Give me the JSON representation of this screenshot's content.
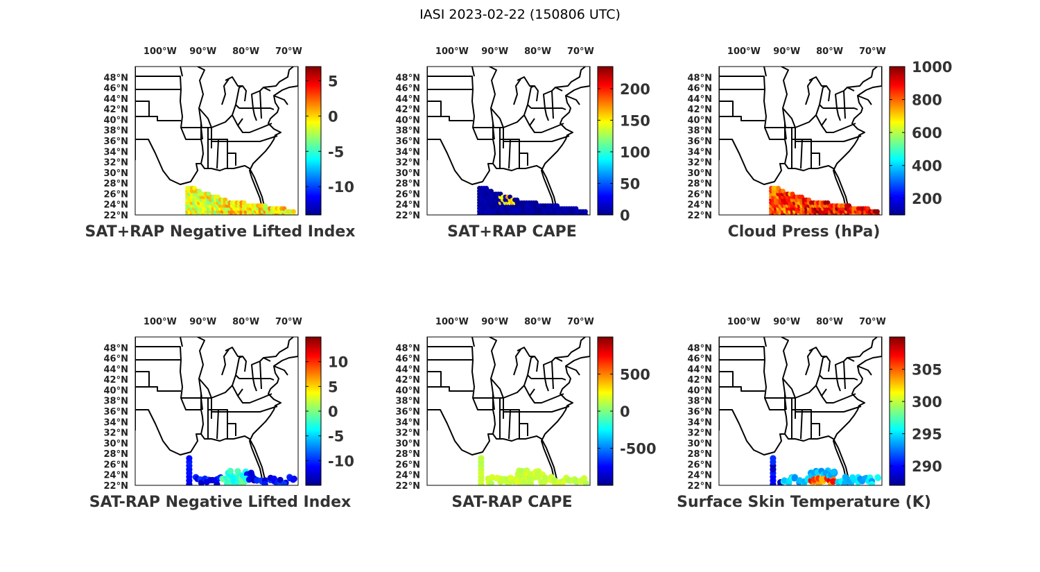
{
  "figure": {
    "title": "IASI 2023-02-22 (150806 UTC)"
  },
  "lon_labels": [
    "100°W",
    "90°W",
    "80°W",
    "70°W"
  ],
  "lat_labels": [
    "48°N",
    "46°N",
    "44°N",
    "42°N",
    "40°N",
    "38°N",
    "36°N",
    "34°N",
    "32°N",
    "30°N",
    "28°N",
    "26°N",
    "24°N",
    "22°N"
  ],
  "map_extent": {
    "lon": [
      -105,
      -67
    ],
    "lat": [
      22,
      50
    ]
  },
  "colormap": "jet",
  "panels": [
    {
      "title": "SAT+RAP Negative Lifted Index",
      "colorbar": {
        "range": [
          -14,
          7
        ],
        "ticks": [
          "-10",
          "-5",
          "0",
          "5"
        ],
        "tick_values": [
          -10,
          -5,
          0,
          5
        ]
      },
      "data_mode": "li_sum"
    },
    {
      "title": "SAT+RAP CAPE",
      "colorbar": {
        "range": [
          0,
          235
        ],
        "ticks": [
          "0",
          "50",
          "100",
          "150",
          "200"
        ],
        "tick_values": [
          0,
          50,
          100,
          150,
          200
        ]
      },
      "data_mode": "cape_sum"
    },
    {
      "title": "Cloud Press (hPa)",
      "colorbar": {
        "range": [
          100,
          1000
        ],
        "ticks": [
          "200",
          "400",
          "600",
          "800",
          "1000"
        ],
        "tick_values": [
          200,
          400,
          600,
          800,
          1000
        ]
      },
      "data_mode": "cloud_press"
    },
    {
      "title": "SAT-RAP Negative Lifted Index",
      "colorbar": {
        "range": [
          -15,
          15
        ],
        "ticks": [
          "-10",
          "-5",
          "0",
          "5",
          "10"
        ],
        "tick_values": [
          -10,
          -5,
          0,
          5,
          10
        ]
      },
      "data_mode": "li_diff"
    },
    {
      "title": "SAT-RAP CAPE",
      "colorbar": {
        "range": [
          -1000,
          1000
        ],
        "ticks": [
          "-500",
          "0",
          "500"
        ],
        "tick_values": [
          -500,
          0,
          500
        ]
      },
      "data_mode": "cape_diff"
    },
    {
      "title": "Surface Skin Temperature (K)",
      "colorbar": {
        "range": [
          287,
          310
        ],
        "ticks": [
          "290",
          "295",
          "300",
          "305"
        ],
        "tick_values": [
          290,
          295,
          300,
          305
        ]
      },
      "data_mode": "skin_temp"
    }
  ]
}
